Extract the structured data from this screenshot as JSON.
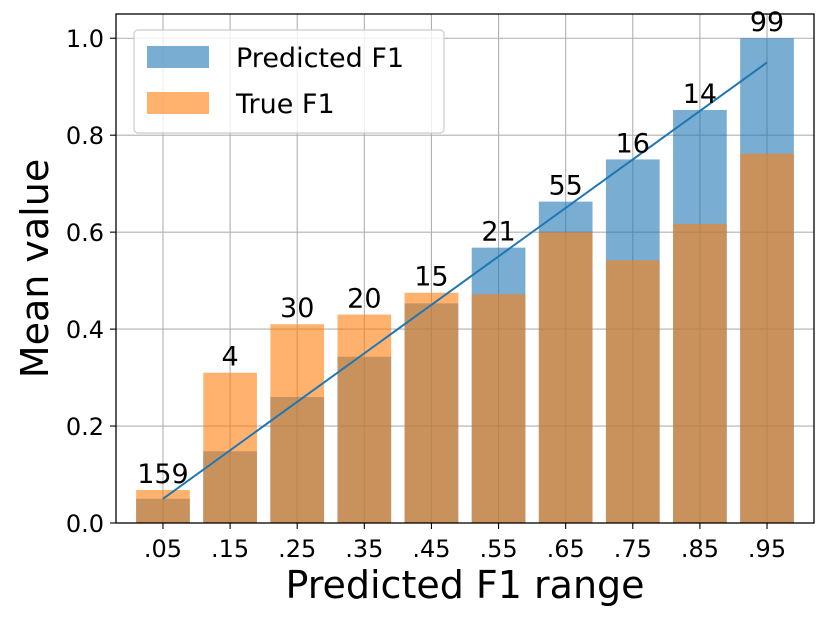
{
  "chart_data": {
    "type": "bar",
    "title": "",
    "xlabel": "Predicted F1 range",
    "ylabel": "Mean value",
    "ylim": [
      0,
      1.05
    ],
    "yticks": [
      "0.0",
      "0.2",
      "0.4",
      "0.6",
      "0.8",
      "1.0"
    ],
    "grid": true,
    "legend_position": "top-left",
    "categories": [
      ".05",
      ".15",
      ".25",
      ".35",
      ".45",
      ".55",
      ".65",
      ".75",
      ".85",
      ".95"
    ],
    "series": [
      {
        "name": "Predicted F1",
        "color": "#1f77b4",
        "values": [
          0.05,
          0.148,
          0.26,
          0.343,
          0.453,
          0.568,
          0.663,
          0.75,
          0.852,
          1.0
        ]
      },
      {
        "name": "True F1",
        "color": "#ff7f0e",
        "values": [
          0.068,
          0.31,
          0.41,
          0.43,
          0.475,
          0.472,
          0.6,
          0.542,
          0.617,
          0.762
        ]
      }
    ],
    "count_labels": [
      "159",
      "4",
      "30",
      "20",
      "15",
      "21",
      "55",
      "16",
      "14",
      "99"
    ],
    "diagonal_line": {
      "x": [
        ".05",
        ".95"
      ],
      "y": [
        0.05,
        0.95
      ],
      "color": "#1f77b4"
    }
  }
}
